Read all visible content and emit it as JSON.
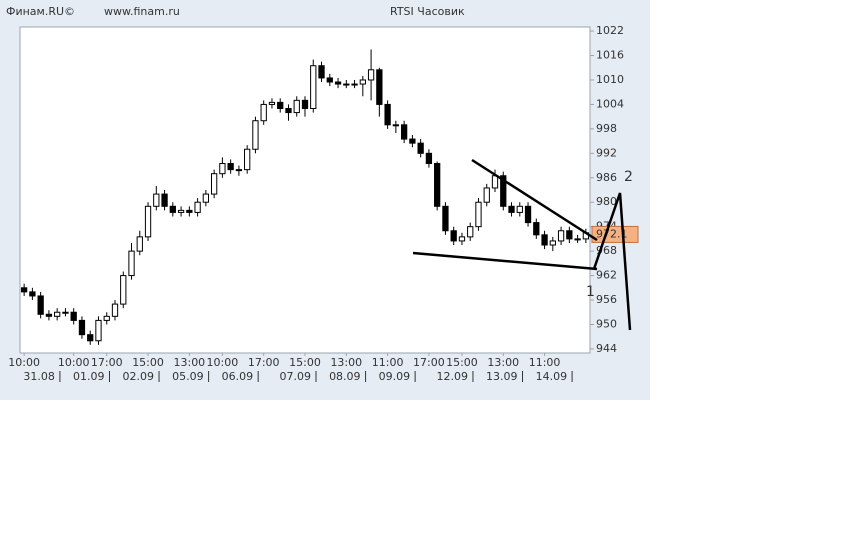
{
  "chart_data": {
    "type": "candlestick",
    "header_left": "Финам.RU©",
    "header_url": "www.finam.ru",
    "title": "RTSI Часовик",
    "categories": [
      "10:00",
      null,
      null,
      null,
      null,
      null,
      "10:00",
      null,
      null,
      null,
      "17:00",
      null,
      null,
      null,
      null,
      "15:00",
      null,
      null,
      null,
      null,
      "13:00",
      null,
      null,
      null,
      "10:00",
      null,
      null,
      null,
      null,
      "17:00",
      null,
      null,
      null,
      null,
      "15:00",
      null,
      null,
      null,
      null,
      "13:00",
      null,
      null,
      null,
      null,
      "11:00",
      null,
      null,
      null,
      null,
      "17:00",
      null,
      null,
      null,
      "15:00",
      null,
      null,
      null,
      null,
      "13:00",
      null,
      null,
      null,
      null,
      "11:00",
      null,
      null,
      null,
      null,
      null
    ],
    "dates": [
      null,
      null,
      null,
      "31.08",
      null,
      null,
      null,
      null,
      null,
      "01.09",
      null,
      null,
      null,
      null,
      null,
      "02.09",
      null,
      null,
      null,
      null,
      null,
      "05.09",
      null,
      null,
      null,
      null,
      null,
      "06.09",
      null,
      null,
      null,
      null,
      null,
      null,
      "07.09",
      null,
      null,
      null,
      null,
      null,
      "08.09",
      null,
      null,
      null,
      null,
      null,
      "09.09",
      null,
      null,
      null,
      null,
      null,
      null,
      "12.09",
      null,
      null,
      null,
      null,
      null,
      "13.09",
      null,
      null,
      null,
      null,
      null,
      "14.09",
      null,
      null,
      null
    ],
    "open": [
      959,
      958,
      957,
      952.5,
      952,
      953,
      953,
      951,
      947.5,
      946,
      951,
      952,
      955,
      962,
      968,
      971.5,
      979,
      982,
      979,
      977.5,
      978,
      977.5,
      980,
      982,
      987,
      989.5,
      988,
      988,
      993,
      1000,
      1004,
      1004.5,
      1003,
      1002,
      1005,
      1003,
      1013.5,
      1010.5,
      1009.5,
      1009,
      1009,
      1009,
      1010,
      1012.5,
      1004,
      999,
      999,
      995.5,
      994.5,
      992,
      989.5,
      979,
      973,
      970.5,
      971.5,
      974,
      980,
      983.5,
      986.5,
      979,
      977.5,
      979,
      975,
      972,
      969.5,
      970.5,
      973,
      971,
      971
    ],
    "high": [
      960,
      959,
      958,
      953.5,
      954,
      954,
      954,
      952,
      948.5,
      952,
      953,
      956,
      963,
      970,
      973,
      980,
      984,
      983,
      980,
      979,
      979,
      981,
      983,
      988,
      991,
      990.5,
      989,
      994,
      1001,
      1005,
      1005.5,
      1005.5,
      1004,
      1006,
      1006,
      1015,
      1014.5,
      1011.5,
      1010.5,
      1010,
      1010,
      1011,
      1017.5,
      1013,
      1005,
      1000,
      1000,
      996.5,
      995.5,
      993,
      990,
      980,
      974,
      972.5,
      975,
      981,
      984.5,
      988,
      987.5,
      980,
      980,
      980,
      976,
      973,
      971.5,
      974,
      974,
      972,
      973.5
    ],
    "low": [
      957,
      956,
      951.5,
      951,
      951,
      952,
      950,
      946.5,
      945,
      945,
      950,
      951,
      954,
      961,
      967,
      970.5,
      978,
      978,
      976.5,
      976.5,
      976.5,
      976.5,
      979,
      981,
      986,
      987,
      986.5,
      987,
      992,
      999,
      1003,
      1002,
      1000,
      1001,
      1001,
      1002,
      1009.5,
      1008.5,
      1008,
      1008,
      1008,
      1006,
      1005,
      1001,
      998,
      997,
      994.5,
      993.5,
      991,
      988.5,
      978,
      972,
      969.5,
      969.5,
      970.5,
      973,
      979,
      982.5,
      978,
      976.5,
      976.5,
      974,
      971,
      968.5,
      968,
      969.5,
      970,
      970,
      970
    ],
    "close": [
      958,
      957,
      952.5,
      952,
      953,
      953,
      951,
      947.5,
      946,
      951,
      952,
      955,
      962,
      968,
      971.5,
      979,
      982,
      979,
      977.5,
      978,
      977.5,
      980,
      982,
      987,
      989.5,
      988,
      988,
      993,
      1000,
      1004,
      1004.5,
      1003,
      1002,
      1005,
      1003,
      1013.5,
      1010.5,
      1009.5,
      1009,
      1009,
      1009,
      1010,
      1012.5,
      1004,
      999,
      999,
      995.5,
      994.5,
      992,
      989.5,
      979,
      973,
      970.5,
      971.5,
      974,
      980,
      983.5,
      986.5,
      979,
      977.5,
      979,
      975,
      972,
      969.5,
      970.5,
      973,
      971,
      971,
      972.5
    ],
    "up_color": "#ffffff",
    "down_color": "#000000",
    "last_price": 972.1,
    "last_price_color": "#f4b183",
    "ylim": [
      943,
      1023
    ],
    "yticks": [
      944,
      950,
      956,
      962,
      968,
      974,
      980,
      986,
      992,
      998,
      1004,
      1010,
      1016,
      1022
    ],
    "grid": false,
    "annotations": [
      "2",
      "1"
    ]
  }
}
